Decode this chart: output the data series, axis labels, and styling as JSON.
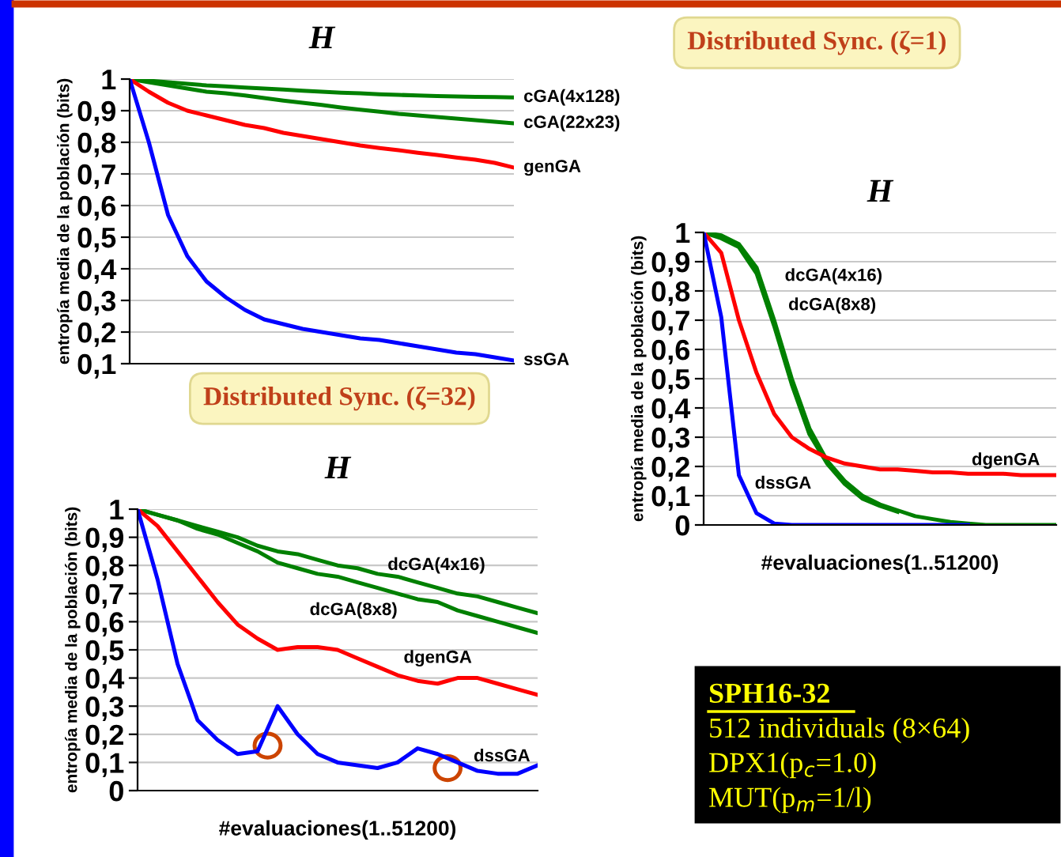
{
  "chart_data": [
    {
      "type": "line",
      "title": "H",
      "ylabel": "entropía media de la población (bits)",
      "categories": [
        null,
        null,
        null,
        null,
        null,
        null,
        null,
        null,
        null,
        null,
        null,
        null,
        null,
        null,
        null,
        null,
        null,
        null,
        null,
        null,
        null
      ],
      "ylim": [
        0.1,
        1
      ],
      "yticks": [
        {
          "value": 0.1,
          "label": "0,1"
        },
        {
          "value": 0.2,
          "label": "0,2"
        },
        {
          "value": 0.3,
          "label": "0,3"
        },
        {
          "value": 0.4,
          "label": "0,4"
        },
        {
          "value": 0.5,
          "label": "0,5"
        },
        {
          "value": 0.6,
          "label": "0,6"
        },
        {
          "value": 0.7,
          "label": "0,7"
        },
        {
          "value": 0.8,
          "label": "0,8"
        },
        {
          "value": 0.9,
          "label": "0,9"
        },
        {
          "value": 1,
          "label": "1"
        }
      ],
      "grid": "y",
      "legend": false,
      "series": [
        {
          "name": "cGA(4x128)",
          "color": "#008000",
          "values": [
            1,
            0.995,
            0.99,
            0.985,
            0.98,
            0.977,
            0.973,
            0.97,
            0.967,
            0.963,
            0.96,
            0.957,
            0.955,
            0.952,
            0.95,
            0.948,
            0.946,
            0.945,
            0.944,
            0.943,
            0.942
          ]
        },
        {
          "name": "cGA(22x23)",
          "color": "#008000",
          "values": [
            1,
            0.99,
            0.98,
            0.97,
            0.96,
            0.955,
            0.948,
            0.94,
            0.932,
            0.925,
            0.918,
            0.91,
            0.903,
            0.897,
            0.89,
            0.885,
            0.88,
            0.875,
            0.87,
            0.865,
            0.86
          ]
        },
        {
          "name": "genGA",
          "color": "#ff0000",
          "values": [
            1,
            0.96,
            0.925,
            0.9,
            0.885,
            0.87,
            0.855,
            0.845,
            0.83,
            0.82,
            0.81,
            0.8,
            0.79,
            0.782,
            0.775,
            0.767,
            0.76,
            0.752,
            0.745,
            0.735,
            0.72
          ]
        },
        {
          "name": "ssGA",
          "color": "#0000ff",
          "values": [
            1,
            0.8,
            0.57,
            0.44,
            0.36,
            0.31,
            0.27,
            0.24,
            0.225,
            0.21,
            0.2,
            0.19,
            0.18,
            0.175,
            0.165,
            0.155,
            0.145,
            0.135,
            0.13,
            0.12,
            0.11
          ]
        }
      ]
    },
    {
      "type": "line",
      "title": "H",
      "annotations": [
        "Distributed Sync. (ζ=1)"
      ],
      "xlabel": "#evaluaciones(1..51200)",
      "ylabel": "entropía media de la población (bits)",
      "categories": [
        null,
        null,
        null,
        null,
        null,
        null,
        null,
        null,
        null,
        null,
        null,
        null,
        null,
        null,
        null,
        null,
        null,
        null,
        null,
        null,
        null
      ],
      "ylim": [
        0,
        1
      ],
      "yticks": [
        {
          "value": 0,
          "label": "0"
        },
        {
          "value": 0.1,
          "label": "0,1"
        },
        {
          "value": 0.2,
          "label": "0,2"
        },
        {
          "value": 0.3,
          "label": "0,3"
        },
        {
          "value": 0.4,
          "label": "0,4"
        },
        {
          "value": 0.5,
          "label": "0,5"
        },
        {
          "value": 0.6,
          "label": "0,6"
        },
        {
          "value": 0.7,
          "label": "0,7"
        },
        {
          "value": 0.8,
          "label": "0,8"
        },
        {
          "value": 0.9,
          "label": "0,9"
        },
        {
          "value": 1,
          "label": "1"
        }
      ],
      "grid": "y",
      "legend": false,
      "series": [
        {
          "name": "dcGA(4x16)",
          "color": "#008000",
          "values": [
            1,
            0.99,
            0.96,
            0.88,
            0.7,
            0.5,
            0.33,
            0.22,
            0.15,
            0.1,
            0.07,
            0.05,
            0.03,
            0.02,
            0.01,
            0.005,
            0,
            0,
            0,
            0,
            0
          ]
        },
        {
          "name": "dcGA(8x8)",
          "color": "#008000",
          "values": [
            1,
            0.98,
            0.95,
            0.86,
            0.68,
            0.48,
            0.31,
            0.21,
            0.14,
            0.09,
            0.065,
            0.045,
            null,
            null,
            null,
            null,
            null,
            null,
            null,
            null,
            null
          ]
        },
        {
          "name": "dgenGA",
          "color": "#ff0000",
          "values": [
            1,
            0.93,
            0.7,
            0.52,
            0.38,
            0.3,
            0.26,
            0.23,
            0.21,
            0.2,
            0.19,
            0.19,
            0.185,
            0.18,
            0.18,
            0.175,
            0.175,
            0.175,
            0.17,
            0.17,
            0.17
          ]
        },
        {
          "name": "dssGA",
          "color": "#0000ff",
          "values": [
            1,
            0.71,
            0.17,
            0.04,
            0.005,
            0,
            0,
            0,
            0,
            0,
            0,
            0,
            0,
            0,
            0,
            0,
            null,
            null,
            null,
            null,
            null
          ]
        }
      ]
    },
    {
      "type": "line",
      "title": "H",
      "annotations": [
        "Distributed Sync. (ζ=32)"
      ],
      "xlabel": "#evaluaciones(1..51200)",
      "ylabel": "entropía media de la población (bits)",
      "categories": [
        null,
        null,
        null,
        null,
        null,
        null,
        null,
        null,
        null,
        null,
        null,
        null,
        null,
        null,
        null,
        null,
        null,
        null,
        null,
        null,
        null
      ],
      "ylim": [
        0,
        1
      ],
      "yticks": [
        {
          "value": 0,
          "label": "0"
        },
        {
          "value": 0.1,
          "label": "0,1"
        },
        {
          "value": 0.2,
          "label": "0,2"
        },
        {
          "value": 0.3,
          "label": "0,3"
        },
        {
          "value": 0.4,
          "label": "0,4"
        },
        {
          "value": 0.5,
          "label": "0,5"
        },
        {
          "value": 0.6,
          "label": "0,6"
        },
        {
          "value": 0.7,
          "label": "0,7"
        },
        {
          "value": 0.8,
          "label": "0,8"
        },
        {
          "value": 0.9,
          "label": "0,9"
        },
        {
          "value": 1,
          "label": "1"
        }
      ],
      "grid": "y",
      "legend": false,
      "series": [
        {
          "name": "dcGA(4x16)",
          "color": "#008000",
          "values": [
            1,
            0.98,
            0.96,
            0.94,
            0.92,
            0.9,
            0.87,
            0.85,
            0.84,
            0.82,
            0.8,
            0.79,
            0.77,
            0.76,
            0.74,
            0.72,
            0.7,
            0.69,
            0.67,
            0.65,
            0.63
          ]
        },
        {
          "name": "dcGA(8x8)",
          "color": "#008000",
          "values": [
            1,
            0.98,
            0.96,
            0.93,
            0.91,
            0.88,
            0.85,
            0.81,
            0.79,
            0.77,
            0.76,
            0.74,
            0.72,
            0.7,
            0.68,
            0.67,
            0.64,
            0.62,
            0.6,
            0.58,
            0.56
          ]
        },
        {
          "name": "dgenGA",
          "color": "#ff0000",
          "values": [
            1,
            0.94,
            0.85,
            0.76,
            0.67,
            0.59,
            0.54,
            0.5,
            0.51,
            0.51,
            0.5,
            0.47,
            0.44,
            0.41,
            0.39,
            0.38,
            0.4,
            0.4,
            0.38,
            0.36,
            0.34
          ]
        },
        {
          "name": "dssGA",
          "color": "#0000ff",
          "values": [
            1,
            0.75,
            0.45,
            0.25,
            0.18,
            0.13,
            0.14,
            0.3,
            0.2,
            0.13,
            0.1,
            0.09,
            0.08,
            0.1,
            0.15,
            0.13,
            0.1,
            0.07,
            0.06,
            0.06,
            0.09
          ]
        }
      ]
    },
    {
      "type": "other",
      "annotations": [
        "SPH16-32",
        "512 individuals (8×64)",
        "DPX1(p$_{c}$=1.0)",
        "MUT(p$_{m}$=1/l)"
      ]
    }
  ]
}
